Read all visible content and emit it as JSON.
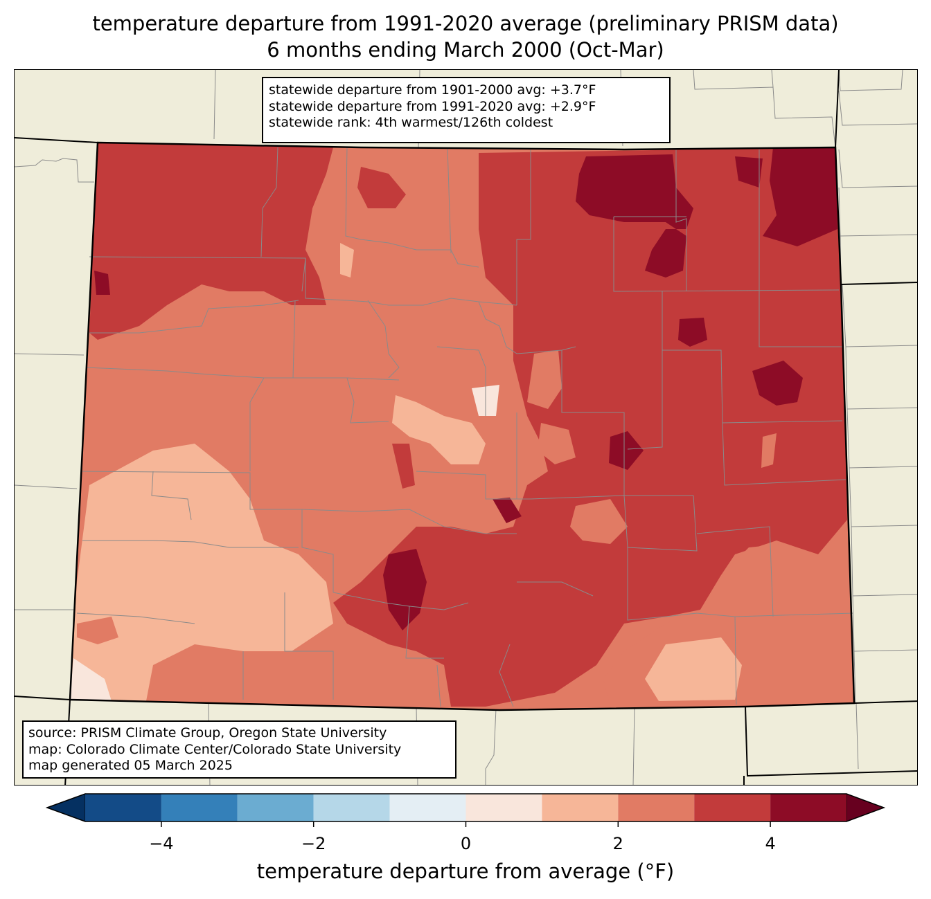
{
  "title": {
    "line1": "temperature departure from 1991-2020 average (preliminary PRISM data)",
    "line2": "6 months ending March 2000 (Oct-Mar)"
  },
  "stats": {
    "line1": "statewide departure from 1901-2000 avg: +3.7°F",
    "line2": "statewide departure from 1991-2020 avg: +2.9°F",
    "line3": "statewide rank: 4th warmest/126th coldest"
  },
  "credits": {
    "line1": "source: PRISM Climate Group, Oregon State University",
    "line2": "map: Colorado Climate Center/Colorado State University",
    "line3": "map generated 05 March 2025"
  },
  "colorbar": {
    "label": "temperature departure from average (°F)",
    "bounds": [
      -5,
      -4,
      -3,
      -2,
      -1,
      0,
      1,
      2,
      3,
      4,
      5
    ],
    "colors": [
      "#134b87",
      "#3480b9",
      "#6bacd1",
      "#b5d7e8",
      "#e4eef4",
      "#f9e6dc",
      "#f6b698",
      "#e17b64",
      "#c23b3b",
      "#8d0c26"
    ],
    "under_color": "#053061",
    "over_color": "#67001f",
    "ticks": [
      {
        "value": -4,
        "label": "−4"
      },
      {
        "value": -2,
        "label": "−2"
      },
      {
        "value": 0,
        "label": "0"
      },
      {
        "value": 2,
        "label": "2"
      },
      {
        "value": 4,
        "label": "4"
      }
    ]
  },
  "map": {
    "land_color": "#efedda",
    "regions": [
      {
        "name": "northwest",
        "category": "3-4"
      },
      {
        "name": "northeast",
        "category": "4-5"
      },
      {
        "name": "central-west",
        "category": "2-3"
      },
      {
        "name": "eastern-plains",
        "category": "3-4"
      },
      {
        "name": "san-luis-valley",
        "category": "4-5"
      },
      {
        "name": "southwest",
        "category": "1-2"
      },
      {
        "name": "southeast",
        "category": "2-3"
      }
    ]
  }
}
